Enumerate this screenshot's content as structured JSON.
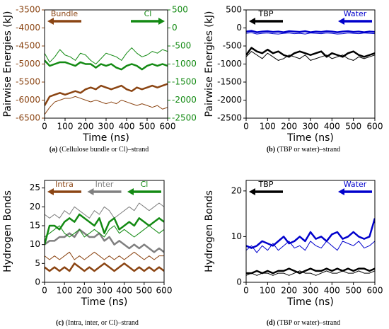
{
  "chart_data": [
    {
      "type": "line",
      "caption_label": "(a)",
      "caption": "(Cellulose bundle or Cl)–strand",
      "xlabel": "Time (ns)",
      "ylabel": "Pairwise Energies (kJ)",
      "xlim": [
        0,
        600
      ],
      "xticks": [
        0,
        100,
        200,
        300,
        400,
        500,
        600
      ],
      "ylim": [
        -6500,
        -3500
      ],
      "yticks": [
        -6500,
        -6000,
        -5500,
        -5000,
        -4500,
        -4000,
        -3500
      ],
      "y2lim": [
        -2500,
        500
      ],
      "y2ticks": [
        -2500,
        -2000,
        -1500,
        -1000,
        -500,
        0,
        500
      ],
      "x": [
        0,
        25,
        50,
        75,
        100,
        125,
        150,
        175,
        200,
        225,
        250,
        275,
        300,
        325,
        350,
        375,
        400,
        425,
        450,
        475,
        500,
        525,
        550,
        575,
        600
      ],
      "series": [
        {
          "name": "Bundle",
          "color": "#8b4513",
          "arrow": "left",
          "values": [
            -6150,
            -5900,
            -5850,
            -5800,
            -5850,
            -5800,
            -5750,
            -5800,
            -5700,
            -5650,
            -5700,
            -5600,
            -5650,
            -5700,
            -5650,
            -5600,
            -5700,
            -5750,
            -5650,
            -5700,
            -5650,
            -5600,
            -5650,
            -5600,
            -5550
          ],
          "thin_values": [
            -6400,
            -6200,
            -6050,
            -6000,
            -5950,
            -5950,
            -5900,
            -5950,
            -6000,
            -6050,
            -6000,
            -6050,
            -6100,
            -6050,
            -6100,
            -6000,
            -6050,
            -6100,
            -6150,
            -6100,
            -6150,
            -6200,
            -6150,
            -6250,
            -6200
          ]
        },
        {
          "name": "Cl",
          "color": "#138a13",
          "arrow": "right",
          "axis": "y2",
          "values": [
            -900,
            -1050,
            -1000,
            -950,
            -950,
            -1000,
            -1050,
            -950,
            -1000,
            -1000,
            -1100,
            -1000,
            -1050,
            -1000,
            -1100,
            -1150,
            -1050,
            -1000,
            -1050,
            -1150,
            -1050,
            -1000,
            -1050,
            -1000,
            -1050
          ],
          "thin_values": [
            -700,
            -950,
            -800,
            -600,
            -750,
            -800,
            -900,
            -700,
            -750,
            -900,
            -1000,
            -850,
            -700,
            -750,
            -800,
            -900,
            -700,
            -550,
            -700,
            -800,
            -750,
            -650,
            -700,
            -600,
            -650
          ]
        }
      ]
    },
    {
      "type": "line",
      "caption_label": "(b)",
      "caption": "(TBP or water)–strand",
      "xlabel": "Time (ns)",
      "ylabel": "Pairwise Energies (kJ)",
      "xlim": [
        0,
        600
      ],
      "xticks": [
        0,
        100,
        200,
        300,
        400,
        500,
        600
      ],
      "ylim": [
        -2500,
        500
      ],
      "yticks": [
        -2500,
        -2000,
        -1500,
        -1000,
        -500,
        0,
        500
      ],
      "x": [
        0,
        25,
        50,
        75,
        100,
        125,
        150,
        175,
        200,
        225,
        250,
        275,
        300,
        325,
        350,
        375,
        400,
        425,
        450,
        475,
        500,
        525,
        550,
        575,
        600
      ],
      "series": [
        {
          "name": "TBP",
          "color": "#000000",
          "arrow": "left",
          "values": [
            -750,
            -550,
            -650,
            -700,
            -600,
            -700,
            -650,
            -750,
            -800,
            -700,
            -650,
            -700,
            -750,
            -700,
            -650,
            -800,
            -700,
            -750,
            -800,
            -700,
            -650,
            -750,
            -800,
            -750,
            -700
          ],
          "thin_values": [
            -800,
            -650,
            -750,
            -850,
            -700,
            -800,
            -900,
            -850,
            -750,
            -800,
            -850,
            -750,
            -900,
            -850,
            -800,
            -750,
            -850,
            -800,
            -750,
            -850,
            -900,
            -800,
            -850,
            -800,
            -750
          ]
        },
        {
          "name": "Water",
          "color": "#0000cc",
          "arrow": "left",
          "values": [
            -100,
            -80,
            -120,
            -100,
            -90,
            -110,
            -100,
            -120,
            -90,
            -100,
            -110,
            -90,
            -120,
            -100,
            -110,
            -90,
            -100,
            -120,
            -100,
            -90,
            -110,
            -100,
            -120,
            -100,
            -110
          ],
          "thin_values": [
            -150,
            -130,
            -170,
            -150,
            -140,
            -160,
            -170,
            -150,
            -140,
            -160,
            -150,
            -170,
            -140,
            -150,
            -160,
            -140,
            -150,
            -170,
            -160,
            -140,
            -150,
            -160,
            -140,
            -150,
            -160
          ]
        }
      ]
    },
    {
      "type": "line",
      "caption_label": "(c)",
      "caption": "(Intra, inter, or Cl)–strand",
      "xlabel": "Time (ns)",
      "ylabel": "Hydrogen Bonds",
      "xlim": [
        0,
        600
      ],
      "xticks": [
        0,
        100,
        200,
        300,
        400,
        500,
        600
      ],
      "ylim": [
        0,
        27
      ],
      "yticks": [
        0,
        5,
        10,
        15,
        20,
        25
      ],
      "x": [
        0,
        25,
        50,
        75,
        100,
        125,
        150,
        175,
        200,
        225,
        250,
        275,
        300,
        325,
        350,
        375,
        400,
        425,
        450,
        475,
        500,
        525,
        550,
        575,
        600
      ],
      "series": [
        {
          "name": "Intra",
          "color": "#8b4513",
          "arrow": "left",
          "values": [
            4,
            3,
            4,
            3,
            4,
            3,
            5,
            4,
            3,
            4,
            3,
            4,
            5,
            4,
            3,
            4,
            5,
            4,
            3,
            4,
            3,
            4,
            3,
            4,
            3
          ],
          "thin_values": [
            7,
            6,
            7,
            6,
            7,
            8,
            6,
            7,
            6,
            7,
            8,
            7,
            6,
            7,
            6,
            7,
            6,
            7,
            8,
            7,
            6,
            7,
            6,
            7,
            7
          ]
        },
        {
          "name": "Inter",
          "color": "#808080",
          "arrow": "left",
          "values": [
            10,
            11,
            11,
            12,
            12,
            13,
            12,
            14,
            13,
            12,
            12,
            13,
            11,
            12,
            10,
            11,
            10,
            9,
            10,
            9,
            10,
            9,
            8,
            9,
            8
          ],
          "thin_values": [
            18,
            17,
            18,
            17,
            19,
            18,
            20,
            19,
            18,
            17,
            19,
            18,
            20,
            19,
            17,
            18,
            19,
            20,
            19,
            21,
            20,
            19,
            20,
            21,
            20
          ]
        },
        {
          "name": "Cl",
          "color": "#138a13",
          "arrow": "left",
          "values": [
            10,
            15,
            15,
            14,
            16,
            17,
            16,
            18,
            17,
            16,
            15,
            17,
            13,
            16,
            17,
            14,
            15,
            16,
            15,
            17,
            16,
            15,
            16,
            17,
            16
          ],
          "thin_values": [
            12,
            13,
            14,
            15,
            13,
            12,
            13,
            14,
            12,
            13,
            14,
            13,
            12,
            14,
            15,
            13,
            14,
            13,
            12,
            13,
            14,
            15,
            14,
            13,
            14
          ]
        }
      ]
    },
    {
      "type": "line",
      "caption_label": "(d)",
      "caption": "(TBP or water)–strand",
      "xlabel": "Time (ns)",
      "ylabel": "Hydrogen Bonds",
      "xlim": [
        0,
        600
      ],
      "xticks": [
        0,
        100,
        200,
        300,
        400,
        500,
        600
      ],
      "ylim": [
        0,
        22.3
      ],
      "yticks": [
        0,
        10,
        20
      ],
      "x": [
        0,
        25,
        50,
        75,
        100,
        125,
        150,
        175,
        200,
        225,
        250,
        275,
        300,
        325,
        350,
        375,
        400,
        425,
        450,
        475,
        500,
        525,
        550,
        575,
        600
      ],
      "series": [
        {
          "name": "TBP",
          "color": "#000000",
          "arrow": "left",
          "values": [
            2,
            2,
            2.5,
            2,
            2.5,
            2,
            2.5,
            2.5,
            3,
            2.5,
            2,
            2.5,
            3,
            2.5,
            2.5,
            3,
            2.5,
            3,
            2.5,
            3,
            2.5,
            3,
            3,
            2.5,
            3
          ],
          "thin_values": [
            1.5,
            2,
            1.5,
            2,
            2,
            1.5,
            2,
            2,
            1.5,
            2,
            2.5,
            2,
            2,
            1.5,
            2,
            2.5,
            2,
            2,
            2.5,
            2,
            2,
            2.5,
            2,
            2,
            2.5
          ]
        },
        {
          "name": "Water",
          "color": "#0000cc",
          "arrow": "left",
          "values": [
            8,
            7.5,
            8,
            9,
            8.5,
            8,
            9,
            10,
            8.5,
            9,
            10,
            9,
            11,
            9.5,
            10,
            9,
            10.5,
            11,
            9.5,
            10,
            11,
            10,
            9.5,
            10,
            14
          ],
          "thin_values": [
            7,
            8,
            6.5,
            8,
            7,
            8.5,
            7,
            8,
            9,
            7.5,
            8,
            7,
            9,
            8,
            7.5,
            9,
            8,
            7,
            9,
            8.5,
            8,
            9,
            7.5,
            8,
            9
          ]
        }
      ]
    }
  ]
}
